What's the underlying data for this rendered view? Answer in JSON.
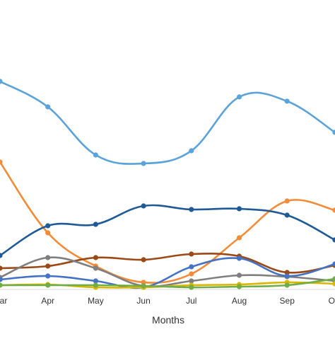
{
  "chart_data": {
    "type": "line",
    "title": "",
    "xlabel": "Months",
    "ylabel": "",
    "grid": false,
    "legend": "none",
    "categories": [
      "Mar",
      "Apr",
      "May",
      "Jun",
      "Jul",
      "Aug",
      "Sep",
      "Oct"
    ],
    "ylim": [
      0,
      330
    ],
    "series": [
      {
        "color": "#5ba3d9",
        "values": [
          294,
          258,
          190,
          178,
          196,
          272,
          266,
          222
        ]
      },
      {
        "color": "#f28c38",
        "values": [
          180,
          80,
          33,
          10,
          22,
          73,
          125,
          112
        ]
      },
      {
        "color": "#1f5a96",
        "values": [
          48,
          90,
          92,
          118,
          113,
          114,
          105,
          70
        ]
      },
      {
        "color": "#9b4a16",
        "values": [
          30,
          33,
          45,
          42,
          50,
          47,
          24,
          34
        ]
      },
      {
        "color": "#7f7f7f",
        "values": [
          17,
          45,
          30,
          5,
          12,
          20,
          18,
          12
        ]
      },
      {
        "color": "#4472c4",
        "values": [
          14,
          19,
          12,
          3,
          32,
          44,
          19,
          36
        ]
      },
      {
        "color": "#d9b600",
        "values": [
          6,
          7,
          3,
          3,
          6,
          7,
          10,
          8
        ]
      },
      {
        "color": "#70ad47",
        "values": [
          6,
          6,
          6,
          5,
          3,
          4,
          6,
          15
        ]
      }
    ]
  }
}
